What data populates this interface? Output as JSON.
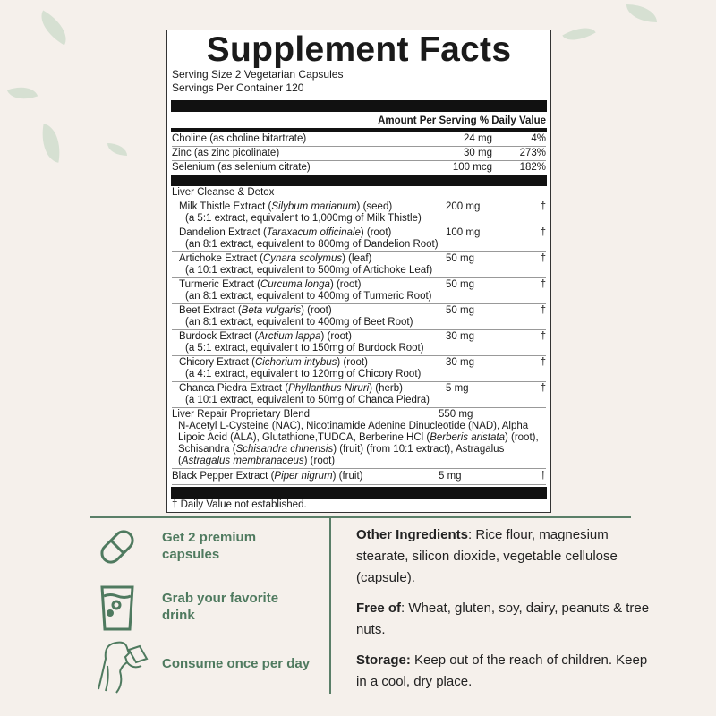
{
  "title": "Supplement Facts",
  "serving_size": "Serving Size 2 Vegetarian Capsules",
  "servings_per_container": "Servings Per Container 120",
  "header": "Amount Per Serving % Daily Value",
  "nutrients": [
    {
      "name": "Choline (as choline bitartrate)",
      "amount": "24 mg",
      "dv": "4%"
    },
    {
      "name": "Zinc (as zinc picolinate)",
      "amount": "30 mg",
      "dv": "273%"
    },
    {
      "name": "Selenium (as selenium citrate)",
      "amount": "100 mcg",
      "dv": "182%"
    }
  ],
  "blend1": "Liver Cleanse & Detox",
  "blend1_items": [
    {
      "pre": "Milk Thistle Extract (",
      "latin": "Silybum marianum",
      "post": ") (seed)",
      "note": "(a 5:1 extract, equivalent to 1,000mg of Milk Thistle)",
      "amount": "200 mg",
      "dv": "†"
    },
    {
      "pre": "Dandelion Extract (",
      "latin": "Taraxacum officinale",
      "post": ") (root)",
      "note": "(an 8:1 extract, equivalent to 800mg of Dandelion Root)",
      "amount": "100 mg",
      "dv": "†"
    },
    {
      "pre": "Artichoke Extract (",
      "latin": "Cynara scolymus",
      "post": ") (leaf)",
      "note": "(a 10:1 extract, equivalent to 500mg of Artichoke Leaf)",
      "amount": "50 mg",
      "dv": "†"
    },
    {
      "pre": "Turmeric Extract (",
      "latin": "Curcuma longa",
      "post": ") (root)",
      "note": "(an 8:1 extract, equivalent to 400mg of Turmeric Root)",
      "amount": "50 mg",
      "dv": "†"
    },
    {
      "pre": "Beet Extract (",
      "latin": "Beta vulgaris",
      "post": ") (root)",
      "note": "(an 8:1 extract, equivalent to 400mg of Beet Root)",
      "amount": "50 mg",
      "dv": "†"
    },
    {
      "pre": "Burdock Extract (",
      "latin": "Arctium lappa",
      "post": ") (root)",
      "note": "(a 5:1 extract, equivalent to 150mg of Burdock Root)",
      "amount": "30 mg",
      "dv": "†"
    },
    {
      "pre": "Chicory Extract (",
      "latin": "Cichorium intybus",
      "post": ") (root)",
      "note": "(a 4:1 extract, equivalent to 120mg of Chicory Root)",
      "amount": "30 mg",
      "dv": "†"
    },
    {
      "pre": "Chanca Piedra Extract (",
      "latin": "Phyllanthus Niruri",
      "post": ") (herb)",
      "note": "(a 10:1 extract, equivalent to 50mg of Chanca Piedra)",
      "amount": "5 mg",
      "dv": "†"
    }
  ],
  "blend2": {
    "name": "Liver Repair Proprietary Blend",
    "amount": "550 mg",
    "parts": [
      "N-Acetyl L-Cysteine (NAC), Nicotinamide Adenine Dinucleotide (NAD), Alpha Lipoic Acid (ALA), Glutathione,TUDCA, Berberine HCl (",
      "Berberis aristata",
      ") (root), Schisandra (",
      "Schisandra chinensis",
      ") (fruit) (from 10:1 extract), Astragalus (",
      "Astragalus membranaceus",
      ") (root)"
    ]
  },
  "black_pepper": {
    "pre": "Black Pepper Extract (",
    "latin": "Piper nigrum",
    "post": ") (fruit)",
    "amount": "5 mg",
    "dv": "†"
  },
  "footnote": "† Daily Value not established.",
  "steps": [
    "Get 2 premium capsules",
    "Grab your favorite drink",
    "Consume once per day"
  ],
  "other": {
    "label": "Other Ingredients",
    "text": ": Rice flour, magnesium stearate, silicon dioxide, vegetable cellulose (capsule)."
  },
  "free": {
    "label": "Free of",
    "text": ": Wheat, gluten, soy, dairy, peanuts & tree nuts."
  },
  "storage": {
    "label": "Storage:",
    "text": " Keep out of the reach of children. Keep in a cool, dry place."
  },
  "colors": {
    "accent": "#4f7a5f",
    "background": "#f5f0eb"
  }
}
